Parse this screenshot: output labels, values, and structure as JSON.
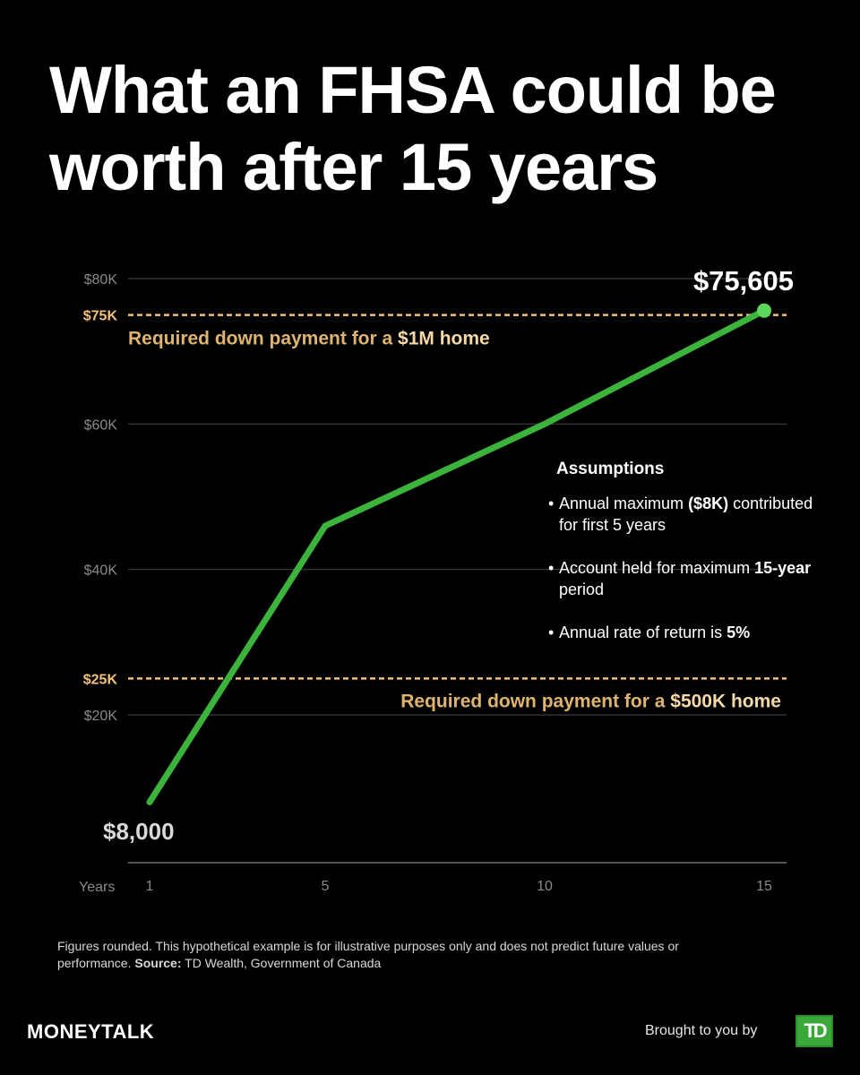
{
  "title": "What an FHSA could be worth after 15 years",
  "chart_data": {
    "type": "line",
    "title": "What an FHSA could be worth after 15 years",
    "xlabel": "Years",
    "ylabel": "",
    "x_ticks": [
      1,
      5,
      10,
      15
    ],
    "y_ticks": [
      {
        "value": 20000,
        "label": "$20K"
      },
      {
        "value": 40000,
        "label": "$40K"
      },
      {
        "value": 60000,
        "label": "$60K"
      },
      {
        "value": 80000,
        "label": "$80K"
      }
    ],
    "ylim": [
      8000,
      80000
    ],
    "xlim": [
      1,
      15
    ],
    "grid": true,
    "series": [
      {
        "color": "#3cb43c",
        "points": [
          {
            "x": 1,
            "y": 8000
          },
          {
            "x": 5,
            "y": 46000
          },
          {
            "x": 10,
            "y": 60000
          },
          {
            "x": 15,
            "y": 75605
          }
        ]
      }
    ],
    "start_label": "$8,000",
    "end_label": "$75,605",
    "reference_lines": [
      {
        "value": 75000,
        "tick_label": "$75K",
        "label_prefix": "Required down payment for a ",
        "label_emphasis": "$1M home",
        "color": "#f2c27a"
      },
      {
        "value": 25000,
        "tick_label": "$25K",
        "label_prefix": "Required down payment for a ",
        "label_emphasis": "$500K home",
        "color": "#f2c27a"
      }
    ]
  },
  "assumptions": {
    "title": "Assumptions",
    "item1_pre": "Annual maximum ",
    "item1_bold": "($8K)",
    "item1_post": " contributed for first 5 years",
    "item2_pre": "Account held for maximum ",
    "item2_bold": "15-year",
    "item2_post": " period",
    "item3_pre": "Annual rate of return is ",
    "item3_bold": "5%"
  },
  "footnote": {
    "text": "Figures rounded. This hypothetical example is for illustrative purposes only and does not predict future values or performance.",
    "source_label": "Source:",
    "source_text": "TD Wealth, Government of Canada"
  },
  "brand": "MONEYTALK",
  "sponsor_text": "Brought to you by",
  "sponsor_logo_text": "TD"
}
